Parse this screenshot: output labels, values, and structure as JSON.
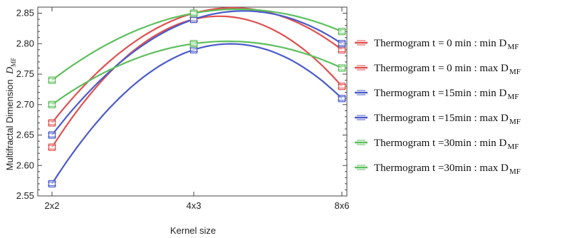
{
  "chart_data": {
    "type": "line",
    "categories": [
      "2x2",
      "4x3",
      "8x6"
    ],
    "xlabel": "Kernel size",
    "ylabel": "Multifractal Dimension",
    "ylabel_symbol": "D",
    "ylabel_subscript": "MF",
    "ylim": [
      2.55,
      2.86
    ],
    "yticks": [
      "2.55",
      "2.60",
      "2.65",
      "2.70",
      "2.75",
      "2.80",
      "2.85"
    ],
    "grid": false,
    "legend_position": "right",
    "series": [
      {
        "name": "Thermogram  t = 0 min : min D",
        "name_sub": "MF",
        "color": "#e05050",
        "values": [
          2.63,
          2.84,
          2.73
        ]
      },
      {
        "name": "Thermogram  t = 0 min : max D",
        "name_sub": "MF",
        "color": "#e05050",
        "values": [
          2.67,
          2.85,
          2.79
        ]
      },
      {
        "name": "Thermogram  t =15min : min D",
        "name_sub": "MF",
        "color": "#4a5bc9",
        "values": [
          2.57,
          2.79,
          2.71
        ]
      },
      {
        "name": "Thermogram  t =15min : max D",
        "name_sub": "MF",
        "color": "#4a5bc9",
        "values": [
          2.65,
          2.84,
          2.8
        ]
      },
      {
        "name": "Thermogram  t =30min : min D",
        "name_sub": "MF",
        "color": "#5dbf5d",
        "values": [
          2.7,
          2.8,
          2.76
        ]
      },
      {
        "name": "Thermogram  t =30min : max D",
        "name_sub": "MF",
        "color": "#5dbf5d",
        "values": [
          2.74,
          2.85,
          2.82
        ]
      }
    ]
  }
}
